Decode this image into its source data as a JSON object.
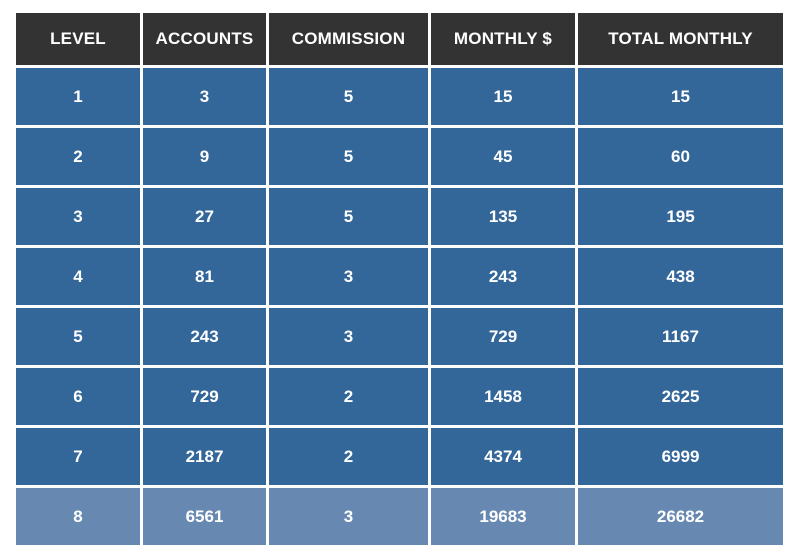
{
  "table": {
    "headers": [
      "LEVEL",
      "ACCOUNTS",
      "COMMISSION",
      "MONTHLY $",
      "TOTAL MONTHLY"
    ],
    "rows": [
      [
        "1",
        "3",
        "5",
        "15",
        "15"
      ],
      [
        "2",
        "9",
        "5",
        "45",
        "60"
      ],
      [
        "3",
        "27",
        "5",
        "135",
        "195"
      ],
      [
        "4",
        "81",
        "3",
        "243",
        "438"
      ],
      [
        "5",
        "243",
        "3",
        "729",
        "1167"
      ],
      [
        "6",
        "729",
        "2",
        "1458",
        "2625"
      ],
      [
        "7",
        "2187",
        "2",
        "4374",
        "6999"
      ],
      [
        "8",
        "6561",
        "3",
        "19683",
        "26682"
      ]
    ]
  },
  "colors": {
    "header_bg": "#333333",
    "row_bg": "#336699",
    "highlight_row_bg": "#6688b1",
    "text": "#ffffff"
  }
}
